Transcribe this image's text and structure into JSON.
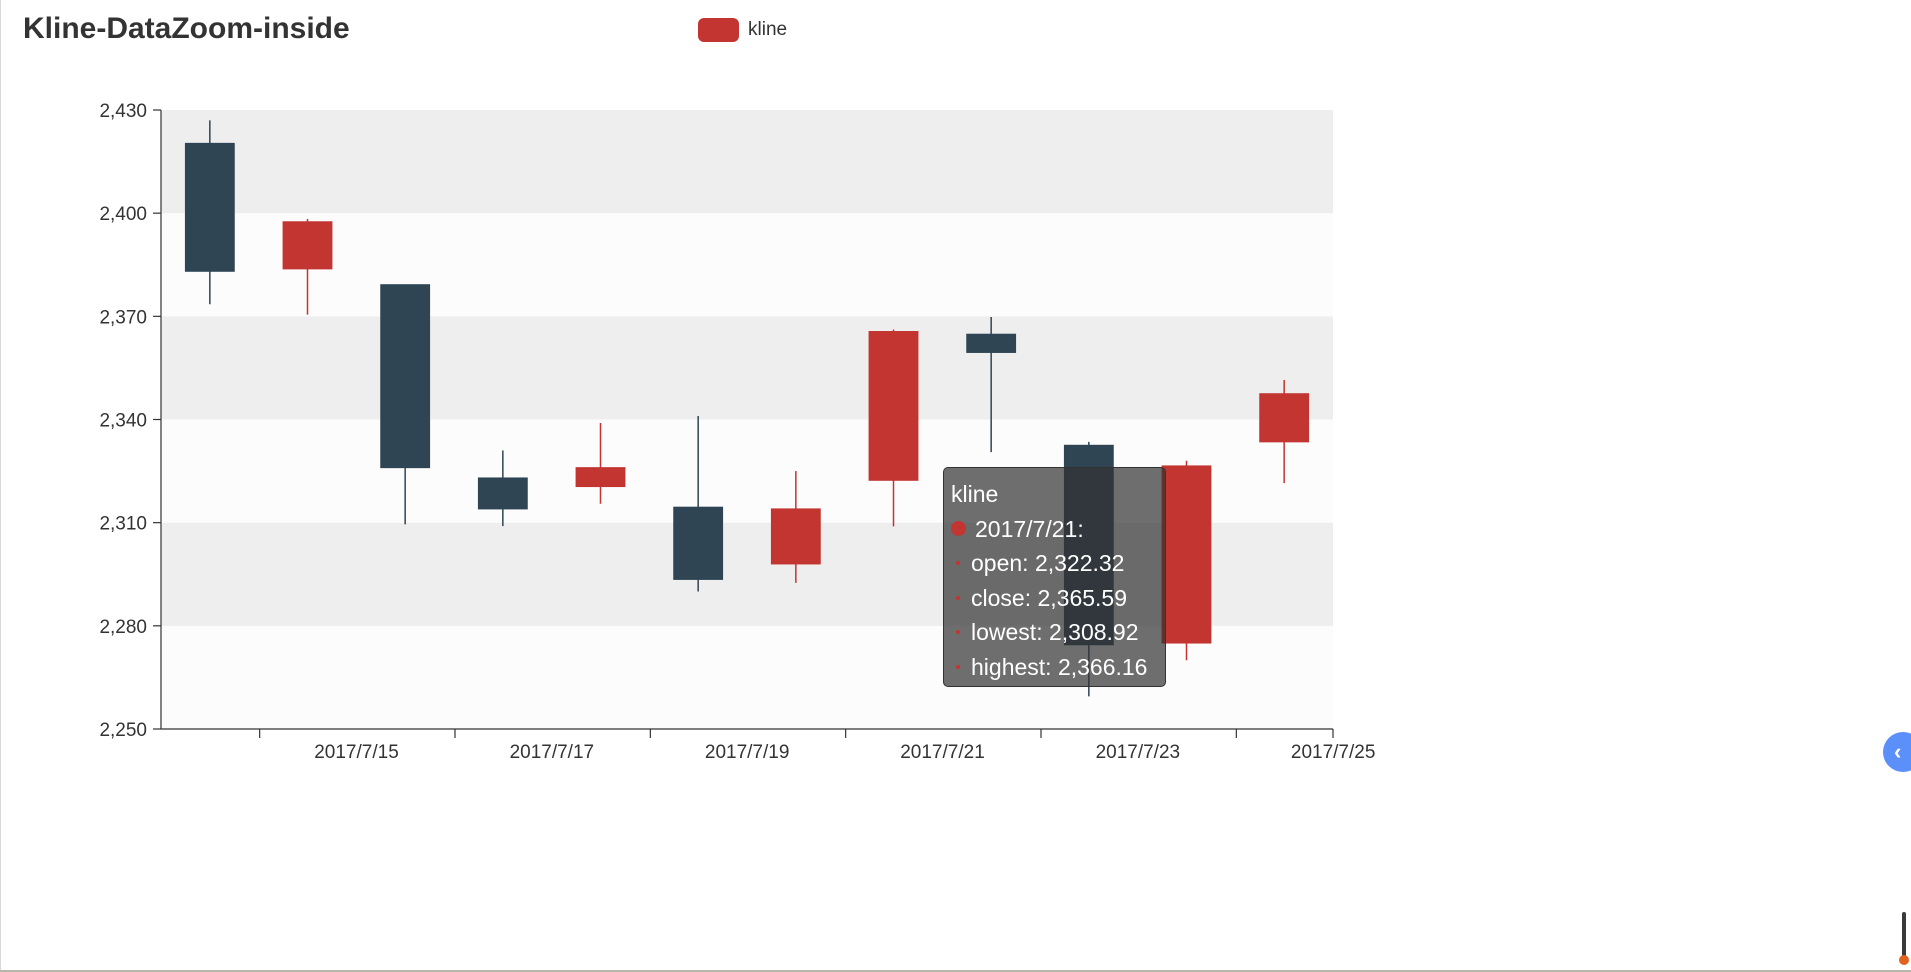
{
  "chart_data": {
    "type": "candlestick",
    "title": "Kline-DataZoom-inside",
    "legend": {
      "label": "kline",
      "position": "top-center"
    },
    "series_name": "kline",
    "up_color": "#c23531",
    "down_color": "#2f4554",
    "grid_band_color": "#eeeeee",
    "grid_band_alt_color": "#fcfcfc",
    "y_axis": {
      "min": 2250,
      "max": 2430,
      "interval": 30,
      "ticks": [
        "2,250",
        "2,280",
        "2,310",
        "2,340",
        "2,370",
        "2,400",
        "2,430"
      ]
    },
    "x_axis": {
      "labels": [
        "2017/7/15",
        "2017/7/17",
        "2017/7/19",
        "2017/7/21",
        "2017/7/23",
        "2017/7/25"
      ]
    },
    "candles": [
      {
        "open": 2420.3,
        "close": 2383.1,
        "low": 2373.5,
        "high": 2427.0
      },
      {
        "open": 2383.8,
        "close": 2397.5,
        "low": 2370.5,
        "high": 2398.3
      },
      {
        "open": 2379.2,
        "close": 2326.0,
        "low": 2309.5,
        "high": 2379.2
      },
      {
        "open": 2323.0,
        "close": 2314.0,
        "low": 2309.0,
        "high": 2331.0
      },
      {
        "open": 2320.5,
        "close": 2326.0,
        "low": 2315.5,
        "high": 2339.0
      },
      {
        "open": 2314.5,
        "close": 2293.5,
        "low": 2290.0,
        "high": 2341.0
      },
      {
        "open": 2298.0,
        "close": 2314.0,
        "low": 2292.5,
        "high": 2325.0
      },
      {
        "open": 2322.32,
        "close": 2365.59,
        "low": 2308.92,
        "high": 2366.16
      },
      {
        "open": 2364.8,
        "close": 2359.5,
        "low": 2330.5,
        "high": 2369.8
      },
      {
        "open": 2332.5,
        "close": 2274.5,
        "low": 2259.5,
        "high": 2333.5
      },
      {
        "open": 2275.0,
        "close": 2326.5,
        "low": 2270.0,
        "high": 2328.0
      },
      {
        "open": 2333.5,
        "close": 2347.5,
        "low": 2321.5,
        "high": 2351.5
      }
    ]
  },
  "tooltip": {
    "series": "kline",
    "date": "2017/7/21:",
    "open": "open: 2,322.32",
    "close": "close: 2,365.59",
    "lowest": "lowest: 2,308.92",
    "highest": "highest: 2,366.16"
  },
  "side_toggle": {
    "label": "‹",
    "color": "#5b8ff9"
  }
}
